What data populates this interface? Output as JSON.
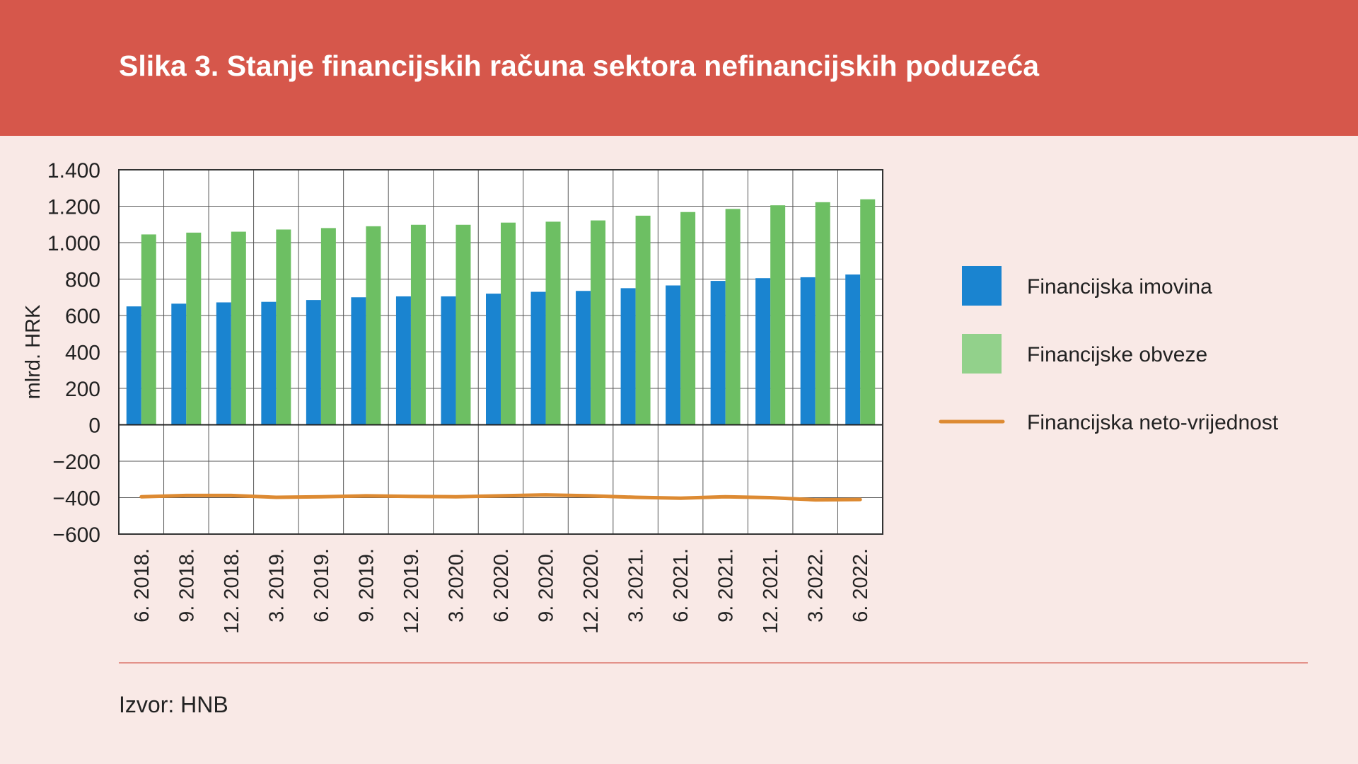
{
  "header": {
    "title": "Slika 3. Stanje financijskih računa sektora nefinancijskih poduzeća"
  },
  "footer": {
    "source": "Izvor: HNB"
  },
  "colors": {
    "header_bg": "#d6574b",
    "page_bg": "#f9e9e6",
    "assets": "#1a84d0",
    "liabilities": "#6dbf63",
    "liabilities_legend": "#92d18b",
    "net": "#dd8a32",
    "divider": "#e3928a"
  },
  "chart_data": {
    "type": "bar",
    "ylabel": "mlrd. HRK",
    "xlabel": "",
    "ylim": [
      -600,
      1400
    ],
    "yticks": [
      1400,
      1200,
      1000,
      800,
      600,
      400,
      200,
      0,
      -200,
      -400,
      -600
    ],
    "ytick_labels": [
      "1.400",
      "1.200",
      "1.000",
      "800",
      "600",
      "400",
      "200",
      "0",
      "−200",
      "−400",
      "−600"
    ],
    "grid": true,
    "legend_position": "right",
    "categories": [
      "6. 2018.",
      "9. 2018.",
      "12. 2018.",
      "3. 2019.",
      "6. 2019.",
      "9. 2019.",
      "12. 2019.",
      "3. 2020.",
      "6. 2020.",
      "9. 2020.",
      "12. 2020.",
      "3. 2021.",
      "6. 2021.",
      "9. 2021.",
      "12. 2021.",
      "3. 2022.",
      "6. 2022."
    ],
    "series": [
      {
        "name": "Financijska imovina",
        "type": "bar",
        "color": "#1a84d0",
        "values": [
          650,
          665,
          672,
          675,
          685,
          700,
          705,
          705,
          720,
          730,
          735,
          750,
          765,
          790,
          805,
          810,
          825
        ]
      },
      {
        "name": "Financijske obveze",
        "type": "bar",
        "color": "#6dbf63",
        "values": [
          1045,
          1055,
          1060,
          1072,
          1080,
          1090,
          1098,
          1098,
          1110,
          1115,
          1122,
          1148,
          1168,
          1185,
          1205,
          1222,
          1238
        ]
      },
      {
        "name": "Financijska neto-vrijednost",
        "type": "line",
        "color": "#dd8a32",
        "values": [
          -395,
          -388,
          -388,
          -398,
          -395,
          -390,
          -393,
          -395,
          -390,
          -385,
          -390,
          -398,
          -403,
          -395,
          -400,
          -412,
          -410
        ]
      }
    ]
  }
}
